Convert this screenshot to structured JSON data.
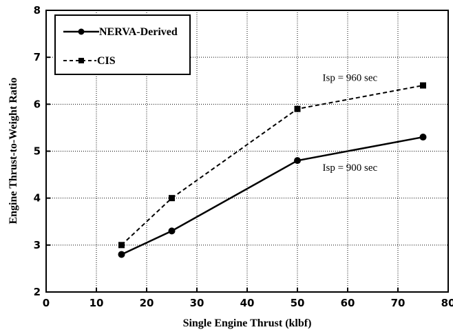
{
  "chart_data": {
    "type": "line",
    "xlabel": "Single Engine Thrust (klbf)",
    "ylabel": "Engine Thrust-to-Weight Ratio",
    "xlim": [
      0,
      80
    ],
    "ylim": [
      2,
      8
    ],
    "xticks": [
      0,
      10,
      20,
      30,
      40,
      50,
      60,
      70,
      80
    ],
    "yticks": [
      2,
      3,
      4,
      5,
      6,
      7,
      8
    ],
    "grid": true,
    "legend_position": "top-left",
    "series": [
      {
        "name": "NERVA-Derived",
        "style": "solid",
        "marker": "circle",
        "x": [
          15,
          25,
          50,
          75
        ],
        "y": [
          2.8,
          3.3,
          4.8,
          5.3
        ]
      },
      {
        "name": "CIS",
        "style": "dashed",
        "marker": "square",
        "x": [
          15,
          25,
          50,
          75
        ],
        "y": [
          3.0,
          4.0,
          5.9,
          6.4
        ]
      }
    ],
    "annotations": [
      {
        "text": "Isp = 960 sec",
        "x": 55,
        "y": 6.5
      },
      {
        "text": "Isp = 900 sec",
        "x": 55,
        "y": 4.58
      }
    ]
  }
}
